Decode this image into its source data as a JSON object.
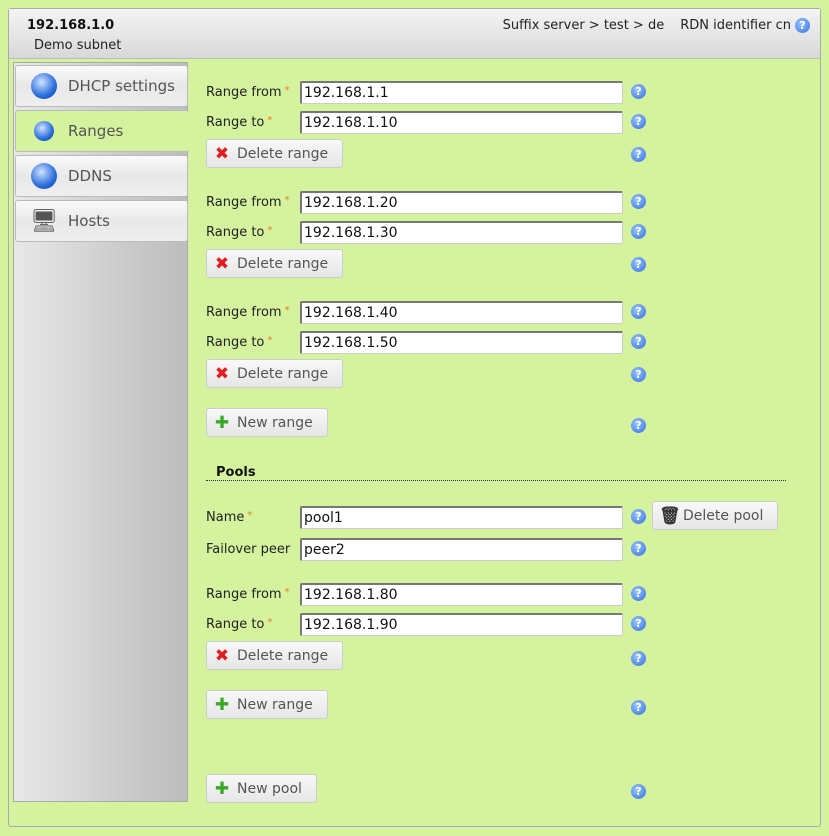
{
  "header": {
    "title": "192.168.1.0",
    "subtitle": "Demo subnet",
    "breadcrumb": "Suffix server > test > de",
    "rdn_label": "RDN identifier",
    "rdn_value": "cn"
  },
  "sidebar": {
    "items": [
      {
        "label": "DHCP settings",
        "icon": "globe-icon"
      },
      {
        "label": "Ranges",
        "icon": "folder-globe-icon",
        "active": true
      },
      {
        "label": "DDNS",
        "icon": "globe-icon"
      },
      {
        "label": "Hosts",
        "icon": "computer-icon"
      }
    ]
  },
  "labels": {
    "range_from": "Range from",
    "range_to": "Range to",
    "delete_range": "Delete range",
    "new_range": "New range",
    "pools": "Pools",
    "name": "Name",
    "failover_peer": "Failover peer",
    "delete_pool": "Delete pool",
    "new_pool": "New pool",
    "required": "*",
    "help": "?"
  },
  "ranges": [
    {
      "from": "192.168.1.1",
      "to": "192.168.1.10"
    },
    {
      "from": "192.168.1.20",
      "to": "192.168.1.30"
    },
    {
      "from": "192.168.1.40",
      "to": "192.168.1.50"
    }
  ],
  "pools": [
    {
      "name": "pool1",
      "failover_peer": "peer2",
      "ranges": [
        {
          "from": "192.168.1.80",
          "to": "192.168.1.90"
        }
      ]
    }
  ],
  "colors": {
    "background": "#d5f29e",
    "required": "#f07a1a",
    "help": "#2e6fe0"
  }
}
